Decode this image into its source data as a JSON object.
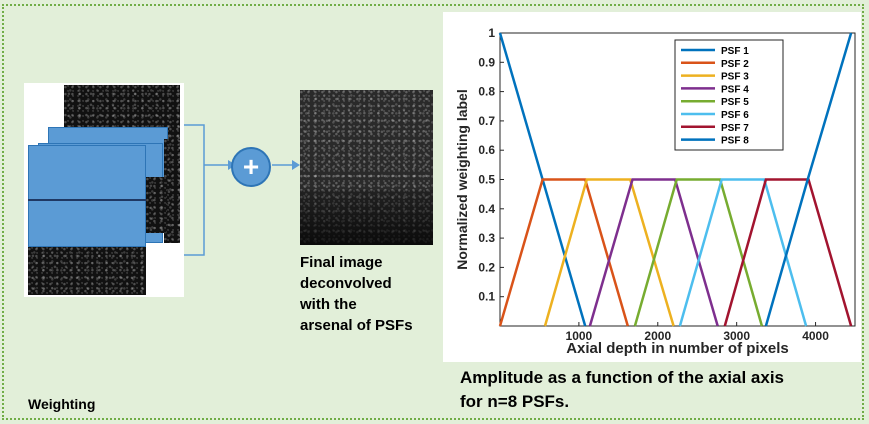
{
  "left_caption": "Weighting",
  "plus_symbol": "+",
  "middle_caption": [
    "Final image",
    "deconvolved",
    "with the",
    "arsenal of PSFs"
  ],
  "right_caption": [
    "Amplitude as a function of the axial axis",
    "for n=8 PSFs."
  ],
  "colors": {
    "background": "#e2efd9",
    "border": "#70ad47",
    "blue_box": "#5b9bd5",
    "plus_circle": "#5b9bd5"
  },
  "chart_data": {
    "type": "line",
    "xlabel": "Axial depth in number of pixels",
    "ylabel": "Normalized weighting label",
    "xlim": [
      0,
      4500
    ],
    "ylim": [
      0,
      1
    ],
    "xticks": [
      1000,
      2000,
      3000,
      4000
    ],
    "yticks": [
      0.1,
      0.2,
      0.3,
      0.4,
      0.5,
      0.6,
      0.7,
      0.8,
      0.9,
      1
    ],
    "legend_position": "top-right",
    "series": [
      {
        "name": "PSF 1",
        "color": "#0072bd",
        "x": [
          0,
          1080
        ],
        "y": [
          1,
          0
        ]
      },
      {
        "name": "PSF 2",
        "color": "#d95319",
        "x": [
          0,
          540,
          1080,
          1620
        ],
        "y": [
          0,
          0.5,
          0.5,
          0
        ]
      },
      {
        "name": "PSF 3",
        "color": "#edb120",
        "x": [
          570,
          1100,
          1650,
          2200
        ],
        "y": [
          0,
          0.5,
          0.5,
          0
        ]
      },
      {
        "name": "PSF 4",
        "color": "#7e2f8e",
        "x": [
          1140,
          1680,
          2220,
          2760
        ],
        "y": [
          0,
          0.5,
          0.5,
          0
        ]
      },
      {
        "name": "PSF 5",
        "color": "#77ac30",
        "x": [
          1710,
          2240,
          2790,
          3320
        ],
        "y": [
          0,
          0.5,
          0.5,
          0
        ]
      },
      {
        "name": "PSF 6",
        "color": "#4dbeee",
        "x": [
          2280,
          2810,
          3350,
          3880
        ],
        "y": [
          0,
          0.5,
          0.5,
          0
        ]
      },
      {
        "name": "PSF 7",
        "color": "#a2142f",
        "x": [
          2850,
          3370,
          3910,
          4450
        ],
        "y": [
          0,
          0.5,
          0.5,
          0
        ]
      },
      {
        "name": "PSF 8",
        "color": "#0072bd",
        "x": [
          3370,
          3900,
          4450
        ],
        "y": [
          0,
          0.5,
          1
        ]
      }
    ]
  }
}
